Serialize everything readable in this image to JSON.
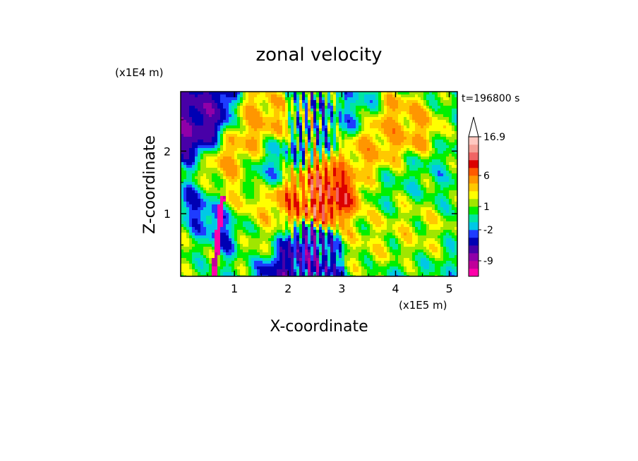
{
  "chart_data": {
    "type": "heatmap",
    "title": "zonal velocity",
    "xlabel": "X-coordinate",
    "ylabel": "Z-coordinate",
    "x_unit": "(x1E5 m)",
    "y_unit": "(x1E4 m)",
    "time_label": "t=196800 s",
    "xlim": [
      0,
      5.15
    ],
    "ylim": [
      0,
      2.95
    ],
    "x_ticks": [
      1,
      2,
      3,
      4,
      5
    ],
    "y_ticks": [
      1,
      2
    ],
    "colorbar": {
      "tick_labels": [
        "16.9",
        "6",
        "1",
        "-2",
        "-9"
      ],
      "levels": [
        -13,
        -11,
        -9,
        -7,
        -5,
        -3,
        -2,
        -1,
        0,
        1,
        2,
        3,
        4,
        6,
        8,
        10,
        12,
        14,
        16.9
      ],
      "colors": [
        "#ff00aa",
        "#c0009a",
        "#9000a8",
        "#4800a8",
        "#0000b4",
        "#1e3cff",
        "#00c8e6",
        "#00e6a0",
        "#00f000",
        "#a0e600",
        "#ffff00",
        "#ffc800",
        "#ff9600",
        "#ff5a00",
        "#dc0000",
        "#f06464",
        "#f5a096",
        "#ffc8c0"
      ],
      "extend_max": true
    },
    "field_description_ok": false,
    "features": [
      {
        "x": 0.68,
        "z": 0.95,
        "value": -10
      },
      {
        "x": 0.45,
        "z": 2.45,
        "value": -7
      },
      {
        "x": 0.55,
        "z": 2.65,
        "value": -5
      },
      {
        "x": 2.45,
        "z": 0.45,
        "value": -5
      },
      {
        "x": 2.1,
        "z": 0.3,
        "value": -5
      },
      {
        "x": 2.7,
        "z": 1.2,
        "value": 9
      },
      {
        "x": 2.15,
        "z": 1.25,
        "value": 6
      },
      {
        "x": 0.8,
        "z": 1.05,
        "value": 7
      },
      {
        "x": 1.0,
        "z": 2.05,
        "value": 4
      },
      {
        "x": 1.3,
        "z": 2.45,
        "value": 4
      },
      {
        "x": 3.6,
        "z": 1.95,
        "value": 4
      },
      {
        "x": 4.1,
        "z": 2.3,
        "value": 4
      },
      {
        "x": 4.3,
        "z": 0.9,
        "value": 2
      },
      {
        "x": 1.6,
        "z": 0.7,
        "value": 2
      },
      {
        "x": 3.3,
        "z": 0.65,
        "value": 2
      },
      {
        "x": 1.7,
        "z": 1.75,
        "value": -1
      },
      {
        "x": 3.0,
        "z": 2.65,
        "value": -1
      },
      {
        "x": 4.6,
        "z": 1.55,
        "value": 0
      },
      {
        "x": 4.0,
        "z": 1.5,
        "value": 0
      },
      {
        "x": 0.3,
        "z": 0.6,
        "value": 1
      }
    ]
  }
}
